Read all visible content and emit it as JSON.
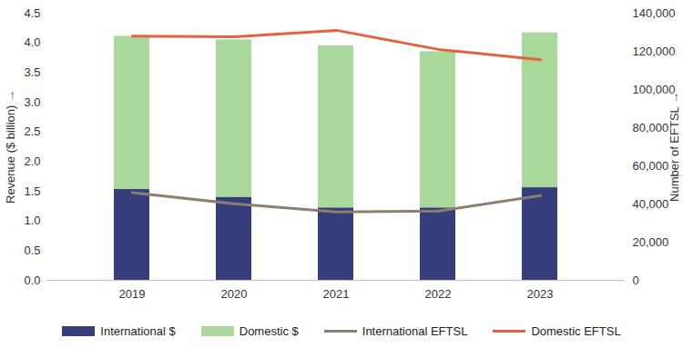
{
  "chart_data": {
    "type": "bar",
    "stacked": true,
    "grid": false,
    "legend": "bottom",
    "categories": [
      "2019",
      "2020",
      "2021",
      "2022",
      "2023"
    ],
    "ylabel": "Revenue ($ billion)",
    "y2label": "Number of EFTSL",
    "ylim": [
      0,
      4.5
    ],
    "yticks": [
      {
        "value": 0,
        "label": "0.0"
      },
      0.5,
      {
        "value": 1,
        "label": "1.0"
      },
      1.5,
      {
        "value": 2,
        "label": "2.0"
      },
      2.5,
      {
        "value": 3,
        "label": "3.0"
      },
      3.5,
      {
        "value": 4,
        "label": "4.0"
      },
      4.5
    ],
    "y2lim": [
      0,
      140000
    ],
    "y2ticks": [
      0,
      {
        "value": 20000,
        "label": "20,000"
      },
      {
        "value": 40000,
        "label": "40,000"
      },
      {
        "value": 60000,
        "label": "60,000"
      },
      {
        "value": 80000,
        "label": "80,000"
      },
      {
        "value": 100000,
        "label": "100,000"
      },
      {
        "value": 120000,
        "label": "120,000"
      },
      {
        "value": 140000,
        "label": "140,000"
      }
    ],
    "series": [
      {
        "name": "International $",
        "type": "bar",
        "color": "#353d7c",
        "values": [
          1.53,
          1.4,
          1.22,
          1.22,
          1.56
        ]
      },
      {
        "name": "Domestic $",
        "type": "bar",
        "color": "#a8d89a",
        "values": [
          2.58,
          2.65,
          2.73,
          2.63,
          2.61
        ]
      },
      {
        "name": "International EFTSL",
        "type": "line",
        "axis": "y2",
        "color": "#8c7f70",
        "values": [
          45900,
          40100,
          35800,
          36300,
          44400
        ]
      },
      {
        "name": "Domestic EFTSL",
        "type": "line",
        "axis": "y2",
        "color": "#e8603c",
        "values": [
          128000,
          127600,
          131000,
          121000,
          115600
        ]
      }
    ]
  }
}
